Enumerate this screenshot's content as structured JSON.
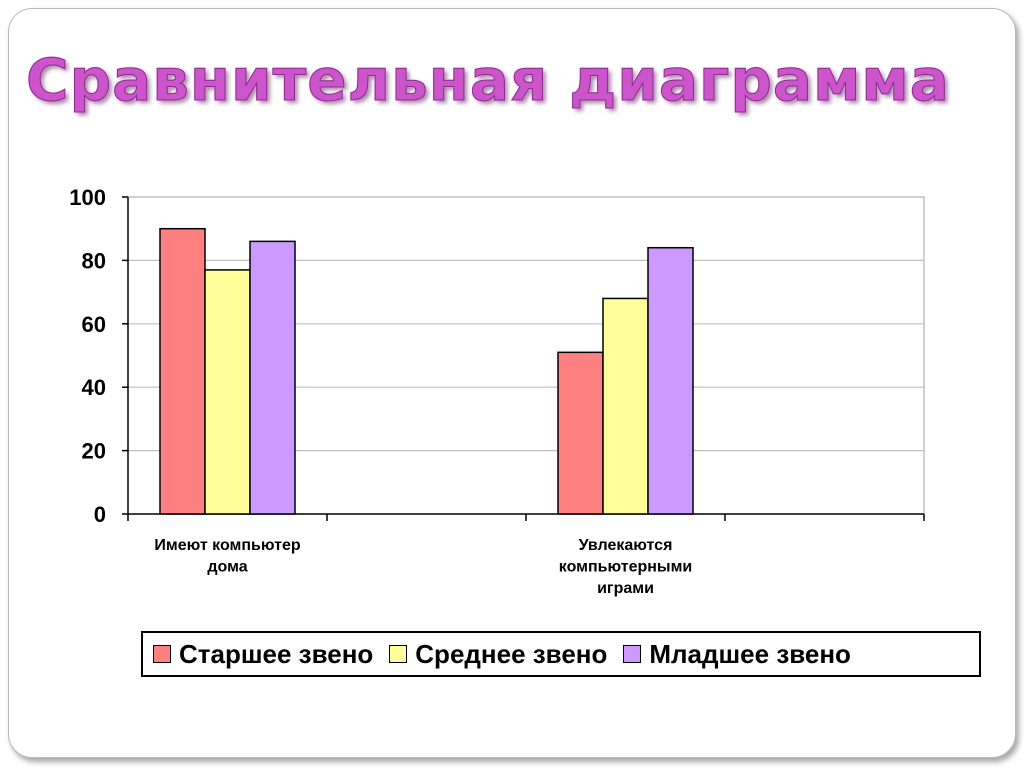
{
  "slide": {
    "title": "Сравнительная диаграмма"
  },
  "colors": {
    "title": "#cc55cc",
    "series_1": "#ff8080",
    "series_2": "#ffff99",
    "series_3": "#cc99ff",
    "gridline": "#c0c0c0"
  },
  "chart_data": {
    "type": "bar",
    "title": "",
    "xlabel": "",
    "ylabel": "",
    "categories": [
      [
        "Имеют компьютер",
        "дома"
      ],
      [
        "Увлекаются",
        "компьютерными",
        "играми"
      ]
    ],
    "series": [
      {
        "name": "Старшее звено",
        "color": "#ff8080",
        "values": [
          90,
          51
        ]
      },
      {
        "name": "Среднее звено",
        "color": "#ffff99",
        "values": [
          77,
          68
        ]
      },
      {
        "name": "Младшее звено",
        "color": "#cc99ff",
        "values": [
          86,
          84
        ]
      }
    ],
    "y_ticks": [
      0,
      20,
      40,
      60,
      80,
      100
    ],
    "ylim": [
      0,
      100
    ],
    "grid": true,
    "legend_position": "bottom"
  }
}
